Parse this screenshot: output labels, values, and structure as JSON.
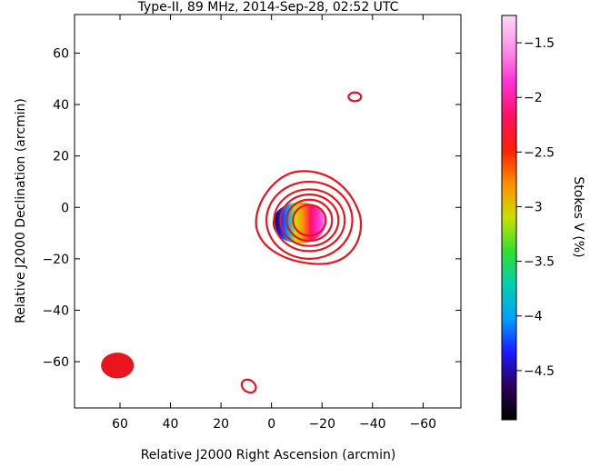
{
  "chart_data": {
    "type": "contour",
    "title": "Type-II, 89 MHz, 2014-Sep-28, 02:52 UTC",
    "xlabel": "Relative J2000 Right Ascension (arcmin)",
    "ylabel": "Relative J2000 Declination (arcmin)",
    "xlim": [
      78,
      -75
    ],
    "ylim": [
      -78,
      75
    ],
    "x_ticks": [
      60,
      40,
      20,
      0,
      -20,
      -40,
      -60
    ],
    "x_tick_labels": [
      "60",
      "40",
      "20",
      "0",
      "−20",
      "−40",
      "−60"
    ],
    "y_ticks": [
      60,
      40,
      20,
      0,
      -20,
      -40,
      -60
    ],
    "y_tick_labels": [
      "60",
      "40",
      "20",
      "0",
      "−20",
      "−40",
      "−60"
    ],
    "contour_color": "#e8141e",
    "source_center": [
      -13,
      -4
    ],
    "contours": [
      {
        "shape": "triangle",
        "center": [
          -14,
          -4
        ],
        "x_extent": [
          6,
          -36
        ],
        "y_extent": [
          -22,
          14
        ]
      },
      {
        "shape": "ellipse",
        "center": [
          -15,
          -5
        ],
        "rx": 17,
        "ry": 15
      },
      {
        "shape": "ellipse",
        "center": [
          -15,
          -5
        ],
        "rx": 14,
        "ry": 12
      },
      {
        "shape": "ellipse",
        "center": [
          -15,
          -5
        ],
        "rx": 11.5,
        "ry": 10
      },
      {
        "shape": "ellipse",
        "center": [
          -15,
          -5
        ],
        "rx": 9,
        "ry": 8
      },
      {
        "shape": "ellipse",
        "center": [
          -15,
          -5
        ],
        "rx": 6.5,
        "ry": 6
      },
      {
        "shape": "ellipse",
        "center": [
          -33,
          43
        ],
        "rx": 2.5,
        "ry": 1.7
      },
      {
        "shape": "ellipse",
        "center": [
          9,
          -69.5
        ],
        "rx": 3,
        "ry": 2.3,
        "rotation": 35
      }
    ],
    "beam": {
      "center": [
        61,
        -61.5
      ],
      "rx": 6.5,
      "ry": 5,
      "color": "#e8141e"
    },
    "stokes_v_map": {
      "center": [
        -11,
        -6
      ],
      "rx": 10.5,
      "ry": 8,
      "gradient_low_to_high_x": [
        -4.8,
        -4.4,
        -3.9,
        -3.2,
        -2.7,
        -2.3,
        -1.9,
        -1.6
      ]
    },
    "colorbar": {
      "label": "Stokes V (%)",
      "range": [
        -4.95,
        -1.25
      ],
      "ticks": [
        -1.5,
        -2,
        -2.5,
        -3,
        -3.5,
        -4,
        -4.5
      ],
      "tick_labels": [
        "−1.5",
        "−2",
        "−2.5",
        "−3",
        "−3.5",
        "−4",
        "−4.5"
      ],
      "colors_bottom_to_top": [
        "#000000",
        "#2a005a",
        "#1a1aff",
        "#00a0ff",
        "#00d0b0",
        "#30e030",
        "#c8e000",
        "#ff9000",
        "#ff2000",
        "#ff1060",
        "#ff30d0",
        "#ff90e8",
        "#ffd8f4"
      ]
    }
  }
}
